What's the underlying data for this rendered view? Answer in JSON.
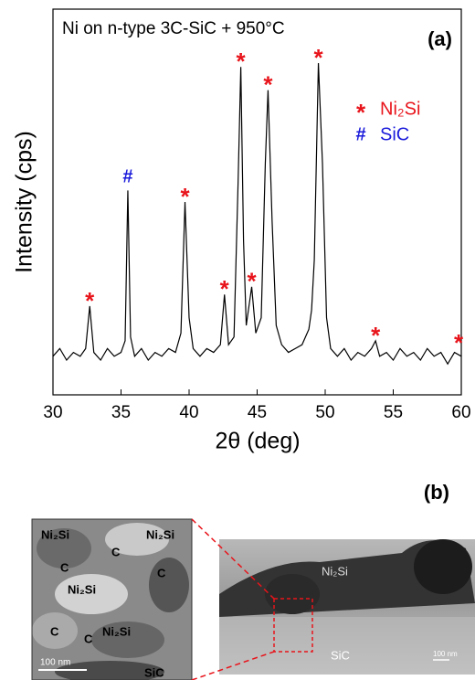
{
  "chart_data": {
    "type": "line",
    "title": "Ni on n-type 3C-SiC + 950°C",
    "panel_label": "(a)",
    "x_label": "2θ (deg)",
    "y_label": "Intensity (cps)",
    "color": "#000000",
    "xlim": [
      30,
      60
    ],
    "xticks": [
      30,
      35,
      40,
      45,
      50,
      55,
      60
    ],
    "ylim": [
      0,
      100
    ],
    "x": [
      30,
      30.5,
      31,
      31.5,
      32,
      32.4,
      32.7,
      33,
      33.5,
      34,
      34.5,
      35,
      35.3,
      35.5,
      35.7,
      36,
      36.5,
      37,
      37.5,
      38,
      38.5,
      39,
      39.4,
      39.7,
      40,
      40.3,
      40.8,
      41.3,
      41.8,
      42.3,
      42.6,
      42.9,
      43.3,
      43.6,
      43.8,
      44,
      44.2,
      44.6,
      44.9,
      45.3,
      45.6,
      45.8,
      46.1,
      46.4,
      46.8,
      47.3,
      47.8,
      48.3,
      48.8,
      49,
      49.2,
      49.5,
      49.8,
      50.1,
      50.4,
      50.9,
      51.4,
      51.9,
      52.4,
      52.9,
      53.4,
      53.7,
      54,
      54.5,
      55,
      55.5,
      56,
      56.5,
      57,
      57.5,
      58,
      58.5,
      59,
      59.5,
      60
    ],
    "values": [
      10,
      12,
      9,
      11,
      10,
      12,
      23,
      11,
      9,
      12,
      10,
      11,
      14,
      53,
      15,
      10,
      12,
      9,
      11,
      10,
      12,
      11,
      16,
      50,
      20,
      12,
      10,
      12,
      11,
      13,
      26,
      13,
      15,
      55,
      85,
      40,
      18,
      28,
      16,
      20,
      60,
      79,
      45,
      18,
      13,
      11,
      12,
      13,
      17,
      22,
      35,
      86,
      60,
      20,
      12,
      10,
      12,
      9,
      11,
      10,
      12,
      14,
      10,
      11,
      9,
      12,
      10,
      11,
      9,
      12,
      10,
      11,
      8,
      11,
      10
    ],
    "peak_marks": [
      {
        "symbol": "*",
        "x": 32.7,
        "y": 23,
        "color": "#e8141b"
      },
      {
        "symbol": "#",
        "x": 35.5,
        "y": 53,
        "color": "#1a1adb"
      },
      {
        "symbol": "*",
        "x": 39.7,
        "y": 50,
        "color": "#e8141b"
      },
      {
        "symbol": "*",
        "x": 42.6,
        "y": 26,
        "color": "#e8141b"
      },
      {
        "symbol": "*",
        "x": 43.8,
        "y": 85,
        "color": "#e8141b"
      },
      {
        "symbol": "*",
        "x": 44.6,
        "y": 28,
        "color": "#e8141b"
      },
      {
        "symbol": "*",
        "x": 45.8,
        "y": 79,
        "color": "#e8141b"
      },
      {
        "symbol": "*",
        "x": 49.5,
        "y": 86,
        "color": "#e8141b"
      },
      {
        "symbol": "*",
        "x": 53.7,
        "y": 14,
        "color": "#e8141b"
      },
      {
        "symbol": "*",
        "x": 59.8,
        "y": 12,
        "color": "#e8141b"
      }
    ],
    "legend": [
      {
        "symbol": "*",
        "label": "Ni₂Si",
        "color": "#e8141b"
      },
      {
        "symbol": "#",
        "label": "SiC",
        "color": "#1a1adb"
      }
    ]
  },
  "figure_b": {
    "panel_label": "(b)",
    "inset_labels": [
      "Ni₂Si",
      "Ni₂Si",
      "C",
      "C",
      "Ni₂Si",
      "C",
      "C",
      "C",
      "Ni₂Si",
      "SiC"
    ],
    "inset_scale": "100 nm",
    "main_labels": [
      "Ni₂Si",
      "SiC"
    ],
    "main_scale": "100 nm"
  }
}
